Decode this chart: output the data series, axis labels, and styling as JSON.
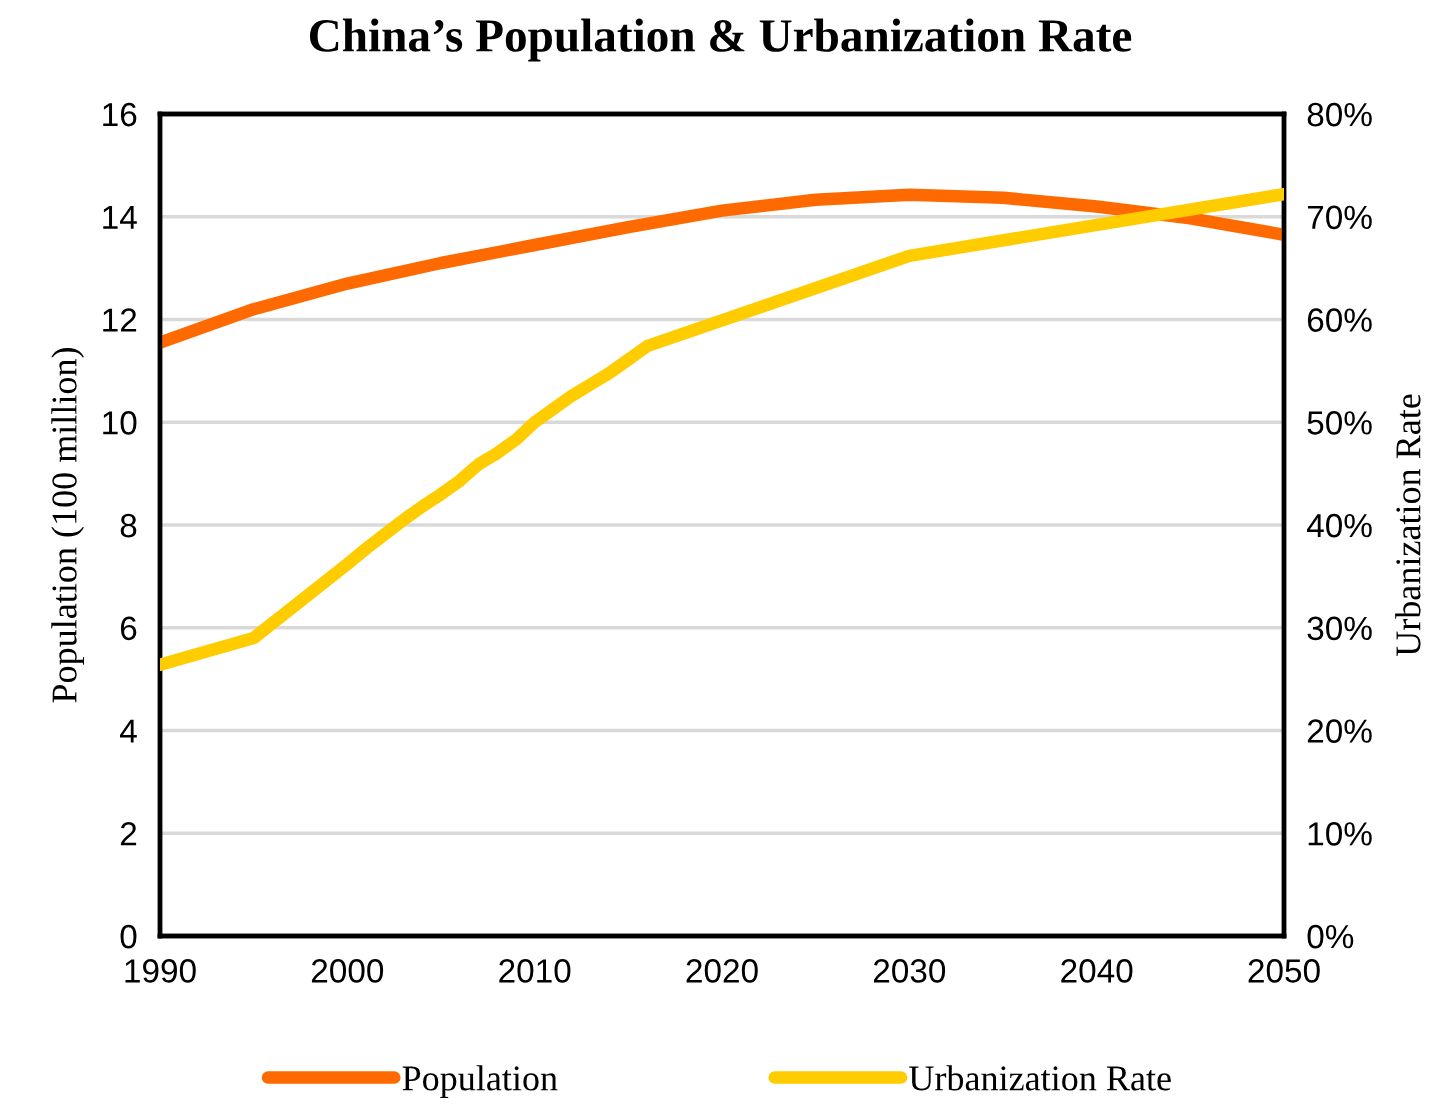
{
  "chart_data": {
    "type": "line",
    "title": "China’s Population & Urbanization Rate",
    "xlabel": null,
    "ylabel": "Population (100 million)",
    "y2label": "Urbanization Rate",
    "xlim": [
      1990,
      2050
    ],
    "xticks": [
      1990,
      2000,
      2010,
      2020,
      2030,
      2040,
      2050
    ],
    "ylim": [
      0,
      16
    ],
    "yticks": [
      0,
      2,
      4,
      6,
      8,
      10,
      12,
      14,
      16
    ],
    "y2lim": [
      0,
      80
    ],
    "y2ticks": [
      {
        "value": 0,
        "label": "0%"
      },
      {
        "value": 10,
        "label": "10%"
      },
      {
        "value": 20,
        "label": "20%"
      },
      {
        "value": 30,
        "label": "30%"
      },
      {
        "value": 40,
        "label": "40%"
      },
      {
        "value": 50,
        "label": "50%"
      },
      {
        "value": 60,
        "label": "60%"
      },
      {
        "value": 70,
        "label": "70%"
      },
      {
        "value": 80,
        "label": "80%"
      }
    ],
    "grid": "y",
    "legend": "bottom",
    "marker": "none",
    "line_style": "solid",
    "series": [
      {
        "name": "Population",
        "color": "#ff6a00",
        "x": [
          1990,
          1995,
          2000,
          2005,
          2010,
          2015,
          2020,
          2025,
          2030,
          2035,
          2040,
          2045,
          2050
        ],
        "values": [
          11.55,
          12.2,
          12.7,
          13.1,
          13.45,
          13.8,
          14.12,
          14.33,
          14.43,
          14.37,
          14.2,
          13.97,
          13.65
        ]
      },
      {
        "name": "Urbanization Rate",
        "color": "#ffcc00",
        "axis": "y2",
        "x": [
          1990,
          1995,
          2000,
          2001,
          2002,
          2003,
          2004,
          2005,
          2006,
          2007,
          2008,
          2009,
          2010,
          2011,
          2012,
          2013,
          2014,
          2015,
          2016,
          2030,
          2050
        ],
        "values": [
          26.4,
          29.0,
          36.2,
          37.7,
          39.1,
          40.5,
          41.8,
          43.0,
          44.3,
          45.9,
          47.0,
          48.3,
          50.0,
          51.3,
          52.6,
          53.7,
          54.8,
          56.1,
          57.4,
          66.2,
          72.2
        ]
      }
    ]
  }
}
